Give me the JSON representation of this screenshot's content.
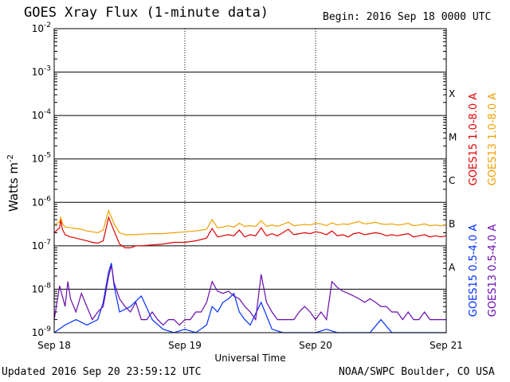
{
  "header": {
    "title": "GOES Xray Flux (1-minute data)",
    "begin": "Begin:  2016 Sep 18 0000 UTC"
  },
  "footer": {
    "updated": "Updated 2016 Sep 20 23:59:12 UTC",
    "credit": "NOAA/SWPC Boulder, CO USA"
  },
  "colors": {
    "goes15_long": "#e00000",
    "goes13_long": "#f0a000",
    "goes15_short": "#0030ff",
    "goes13_short": "#6a0dad"
  },
  "chart_data": {
    "type": "line",
    "title": "GOES Xray Flux (1-minute data)",
    "xlabel": "Universal Time",
    "ylabel": "Watts m",
    "ylabel_sup": "-2",
    "yscale": "log",
    "ylim": [
      1e-09,
      0.01
    ],
    "xlim": [
      0,
      72
    ],
    "x_unit": "hours since 2016 Sep 18 0000 UTC",
    "x_ticks": [
      {
        "x": 0,
        "label": "Sep 18"
      },
      {
        "x": 24,
        "label": "Sep 19"
      },
      {
        "x": 48,
        "label": "Sep 20"
      },
      {
        "x": 72,
        "label": "Sep 21"
      }
    ],
    "y_ticks": [
      {
        "exp": -9,
        "base": "10",
        "sup": "-9"
      },
      {
        "exp": -8,
        "base": "10",
        "sup": "-8"
      },
      {
        "exp": -7,
        "base": "10",
        "sup": "-7"
      },
      {
        "exp": -6,
        "base": "10",
        "sup": "-6"
      },
      {
        "exp": -5,
        "base": "10",
        "sup": "-5"
      },
      {
        "exp": -4,
        "base": "10",
        "sup": "-4"
      },
      {
        "exp": -3,
        "base": "10",
        "sup": "-3"
      },
      {
        "exp": -2,
        "base": "10",
        "sup": "-2"
      }
    ],
    "flare_classes": [
      {
        "label": "A",
        "exp": -8
      },
      {
        "label": "B",
        "exp": -7
      },
      {
        "label": "C",
        "exp": -6
      },
      {
        "label": "M",
        "exp": -5
      },
      {
        "label": "X",
        "exp": -4
      }
    ],
    "grid": true,
    "series": [
      {
        "name": "GOES15 1.0-8.0 A",
        "color": "#e00000",
        "x": [
          0,
          1,
          1.2,
          1.5,
          2,
          3,
          4,
          5,
          6,
          7,
          8,
          9,
          10,
          11,
          12,
          13,
          14,
          15,
          16,
          18,
          20,
          22,
          24,
          26,
          28,
          29,
          30,
          31,
          32,
          33,
          34,
          35,
          36,
          37,
          38,
          39,
          40,
          41,
          42,
          43,
          44,
          45,
          46,
          47,
          48,
          49,
          50,
          51,
          52,
          53,
          54,
          55,
          56,
          57,
          58,
          59,
          60,
          61,
          62,
          63,
          64,
          65,
          66,
          67,
          68,
          69,
          70,
          71,
          72
        ],
        "y": [
          2e-07,
          2.6e-07,
          4e-07,
          2.4e-07,
          1.8e-07,
          1.6e-07,
          1.5e-07,
          1.4e-07,
          1.3e-07,
          1.2e-07,
          1.15e-07,
          1.3e-07,
          4.5e-07,
          2.2e-07,
          1.1e-07,
          9e-08,
          9e-08,
          1e-07,
          1e-07,
          1.05e-07,
          1.1e-07,
          1.2e-07,
          1.2e-07,
          1.3e-07,
          1.5e-07,
          2.5e-07,
          1.6e-07,
          1.7e-07,
          1.8e-07,
          1.7e-07,
          2.3e-07,
          1.6e-07,
          1.8e-07,
          1.7e-07,
          2.6e-07,
          1.7e-07,
          1.9e-07,
          1.7e-07,
          2e-07,
          2.4e-07,
          1.8e-07,
          1.9e-07,
          2e-07,
          1.9e-07,
          2.1e-07,
          2e-07,
          1.8e-07,
          2.2e-07,
          1.7e-07,
          1.8e-07,
          1.6e-07,
          1.9e-07,
          2e-07,
          1.8e-07,
          1.9e-07,
          2e-07,
          1.9e-07,
          1.7e-07,
          1.8e-07,
          1.7e-07,
          1.8e-07,
          1.9e-07,
          1.6e-07,
          1.7e-07,
          1.8e-07,
          1.6e-07,
          1.7e-07,
          1.6e-07,
          1.7e-07
        ]
      },
      {
        "name": "GOES13 1.0-8.0 A",
        "color": "#f0a000",
        "x": [
          0,
          1,
          1.2,
          1.5,
          2,
          3,
          4,
          5,
          6,
          7,
          8,
          9,
          10,
          11,
          12,
          13,
          14,
          15,
          16,
          18,
          20,
          22,
          24,
          26,
          28,
          29,
          30,
          31,
          32,
          33,
          34,
          35,
          36,
          37,
          38,
          39,
          40,
          41,
          42,
          43,
          44,
          45,
          46,
          47,
          48,
          49,
          50,
          51,
          52,
          53,
          54,
          55,
          56,
          57,
          58,
          59,
          60,
          61,
          62,
          63,
          64,
          65,
          66,
          67,
          68,
          69,
          70,
          71,
          72
        ],
        "y": [
          3e-07,
          3.6e-07,
          4.5e-07,
          3.3e-07,
          2.7e-07,
          2.6e-07,
          2.5e-07,
          2.4e-07,
          2.2e-07,
          2.1e-07,
          2e-07,
          2.3e-07,
          6.5e-07,
          3.2e-07,
          2e-07,
          1.8e-07,
          1.8e-07,
          1.8e-07,
          1.85e-07,
          1.9e-07,
          1.9e-07,
          2e-07,
          2.1e-07,
          2.2e-07,
          2.4e-07,
          4e-07,
          2.6e-07,
          2.7e-07,
          2.9e-07,
          2.7e-07,
          3.3e-07,
          2.8e-07,
          2.9e-07,
          2.8e-07,
          3.8e-07,
          2.8e-07,
          3e-07,
          2.8e-07,
          3.1e-07,
          3.5e-07,
          2.9e-07,
          3e-07,
          3.1e-07,
          3e-07,
          3.3e-07,
          3.2e-07,
          2.9e-07,
          3.4e-07,
          3e-07,
          3.2e-07,
          3.1e-07,
          3.4e-07,
          3.6e-07,
          3.2e-07,
          3.3e-07,
          3.5e-07,
          3.2e-07,
          3.1e-07,
          3.2e-07,
          3e-07,
          3.1e-07,
          3.3e-07,
          2.9e-07,
          3e-07,
          3.2e-07,
          2.9e-07,
          3e-07,
          2.9e-07,
          3e-07
        ]
      },
      {
        "name": "GOES15 0.5-4.0 A",
        "color": "#0030ff",
        "x": [
          0,
          2,
          4,
          6,
          8,
          9,
          10,
          10.5,
          11,
          12,
          14,
          16,
          18,
          20,
          22,
          24,
          26,
          28,
          29,
          30,
          31,
          32,
          33,
          34,
          35,
          36,
          38,
          40,
          42,
          44,
          46,
          48,
          50,
          52,
          54,
          56,
          58,
          60,
          62,
          64,
          66,
          68,
          70,
          72
        ],
        "y": [
          1e-09,
          1.5e-09,
          2e-09,
          1.5e-09,
          2e-09,
          5e-09,
          2.5e-08,
          4e-08,
          1.2e-08,
          3e-09,
          4e-09,
          7e-09,
          2e-09,
          1.2e-09,
          1e-09,
          1.2e-09,
          1e-09,
          1.5e-09,
          4e-09,
          3e-09,
          5e-09,
          6e-09,
          8e-09,
          3e-09,
          2e-09,
          1.5e-09,
          5e-09,
          1.2e-09,
          1e-09,
          1e-09,
          1e-09,
          1e-09,
          1.2e-09,
          1e-09,
          1e-09,
          1e-09,
          1e-09,
          2e-09,
          1e-09,
          1e-09,
          1e-09,
          1e-09,
          1e-09,
          1e-09
        ]
      },
      {
        "name": "GOES13 0.5-4.0 A",
        "color": "#6a0dad",
        "x": [
          0,
          1,
          2,
          2.5,
          3,
          4,
          5,
          6,
          7,
          8,
          9,
          10,
          10.5,
          11,
          12,
          13,
          14,
          15,
          16,
          17,
          18,
          19,
          20,
          21,
          22,
          23,
          24,
          25,
          26,
          27,
          28,
          29,
          30,
          31,
          32,
          33,
          34,
          35,
          36,
          37,
          38,
          39,
          40,
          41,
          42,
          43,
          44,
          45,
          46,
          47,
          48,
          49,
          50,
          51,
          52,
          53,
          54,
          55,
          56,
          57,
          58,
          59,
          60,
          61,
          62,
          63,
          64,
          65,
          66,
          67,
          68,
          69,
          70,
          71,
          72
        ],
        "y": [
          2e-09,
          1.2e-08,
          4e-09,
          1.5e-08,
          6e-09,
          3e-09,
          8e-09,
          4e-09,
          2e-09,
          3e-09,
          4e-09,
          2e-08,
          3.5e-08,
          1.4e-08,
          6e-09,
          4e-09,
          3e-09,
          5e-09,
          2e-09,
          2e-09,
          3e-09,
          2e-09,
          1.5e-09,
          2e-09,
          2e-09,
          1.5e-09,
          2e-09,
          2e-09,
          3e-09,
          3e-09,
          5e-09,
          1.5e-08,
          9e-09,
          8e-09,
          9e-09,
          7e-09,
          6e-09,
          4e-09,
          3e-09,
          2e-09,
          2.2e-08,
          5e-09,
          3e-09,
          2e-09,
          2e-09,
          2e-09,
          2e-09,
          3e-09,
          4e-09,
          3e-09,
          2e-09,
          3e-09,
          2e-09,
          1.5e-08,
          1.1e-08,
          9e-09,
          8e-09,
          7e-09,
          6e-09,
          5e-09,
          6e-09,
          5e-09,
          4e-09,
          4e-09,
          3e-09,
          3e-09,
          2e-09,
          3e-09,
          2e-09,
          2e-09,
          3e-09,
          2e-09,
          2e-09,
          2e-09,
          2e-09
        ]
      }
    ]
  }
}
